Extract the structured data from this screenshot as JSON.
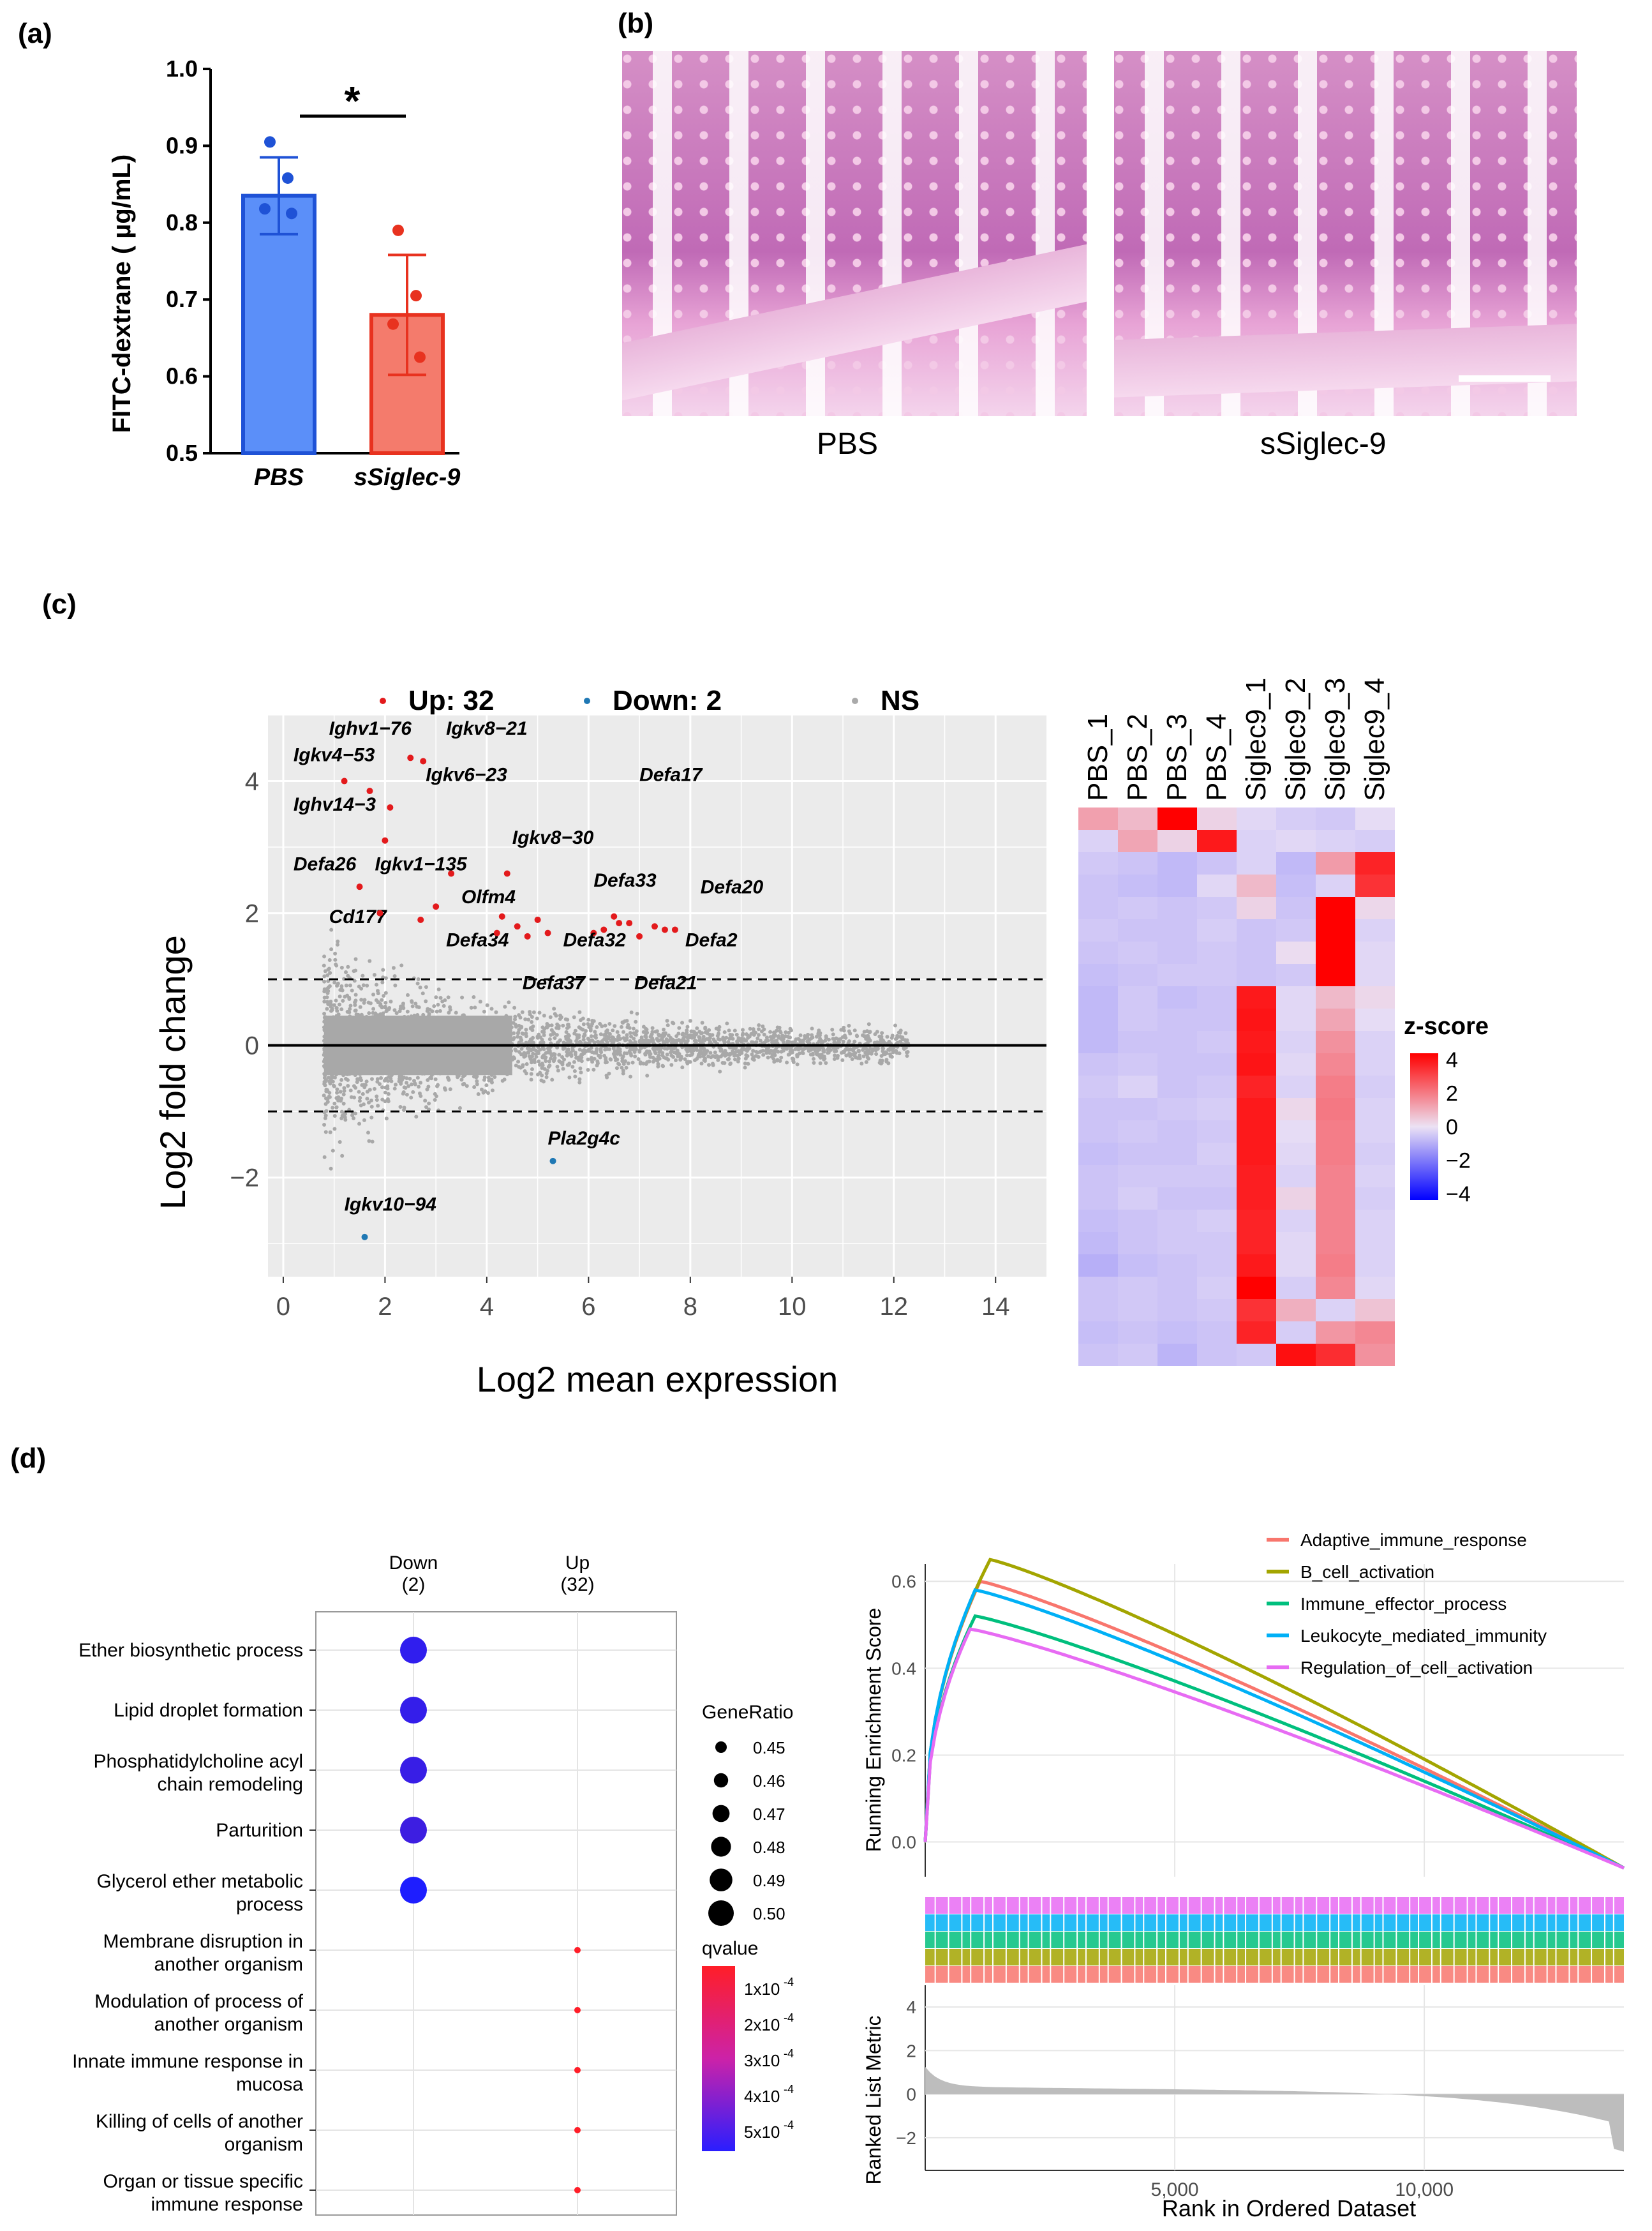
{
  "panel_labels": {
    "a": "(a)",
    "b": "(b)",
    "c": "(c)",
    "d": "(d)"
  },
  "panel_a": {
    "ylabel": "FITC-dextrane ( µg/mL)",
    "significance": "*",
    "yticks": [
      "0.5",
      "0.6",
      "0.7",
      "0.8",
      "0.9",
      "1.0"
    ],
    "chart_data": {
      "type": "bar",
      "categories": [
        "PBS",
        "sSiglec-9"
      ],
      "values": [
        0.835,
        0.68
      ],
      "errors": [
        0.05,
        0.078
      ],
      "points": [
        [
          0.905,
          0.858,
          0.818,
          0.812
        ],
        [
          0.79,
          0.705,
          0.668,
          0.625
        ]
      ],
      "ylim": [
        0.5,
        1.0
      ],
      "colors": [
        "#5b8ff9",
        "#f47b6c"
      ],
      "edge_colors": [
        "#1f52d6",
        "#e8321f"
      ]
    }
  },
  "panel_b": {
    "left_label": "PBS",
    "right_label": "sSiglec-9"
  },
  "panel_c": {
    "legend": [
      {
        "label": "Up: 32",
        "color": "#e31a1c"
      },
      {
        "label": "Down: 2",
        "color": "#1f78b4"
      },
      {
        "label": "NS",
        "color": "#aaaaaa"
      }
    ],
    "ma_plot": {
      "type": "scatter",
      "xlabel": "Log2 mean expression",
      "ylabel": "Log2 fold change",
      "xticks": [
        "0",
        "2",
        "4",
        "6",
        "8",
        "10",
        "12",
        "14"
      ],
      "yticks": [
        "−2",
        "0",
        "2",
        "4"
      ],
      "xlim": [
        -0.3,
        15
      ],
      "ylim": [
        -3.5,
        5
      ],
      "thresholds": [
        -1,
        1
      ],
      "labeled_genes": [
        {
          "name": "Ighv1−76",
          "x": 2.5,
          "y": 4.35,
          "tx": 0.9,
          "ty": 4.7
        },
        {
          "name": "Igkv8−21",
          "x": 2.75,
          "y": 4.3,
          "tx": 3.2,
          "ty": 4.7
        },
        {
          "name": "Igkv4−53",
          "x": 1.2,
          "y": 4.0,
          "tx": 0.2,
          "ty": 4.3
        },
        {
          "name": "Igkv6−23",
          "x": 1.7,
          "y": 3.85,
          "tx": 2.8,
          "ty": 4.0
        },
        {
          "name": "Ighv14−3",
          "x": 2.1,
          "y": 3.6,
          "tx": 0.2,
          "ty": 3.55
        },
        {
          "name": "Igkv8−30",
          "x": 4.4,
          "y": 2.6,
          "tx": 4.5,
          "ty": 3.05
        },
        {
          "name": "Defa26",
          "x": 1.5,
          "y": 2.4,
          "tx": 0.2,
          "ty": 2.65
        },
        {
          "name": "Igkv1−135",
          "x": 3.3,
          "y": 2.6,
          "tx": 1.8,
          "ty": 2.65
        },
        {
          "name": "Olfm4",
          "x": 4.3,
          "y": 1.95,
          "tx": 3.5,
          "ty": 2.15
        },
        {
          "name": "Cd177",
          "x": 2.7,
          "y": 1.9,
          "tx": 0.9,
          "ty": 1.85
        },
        {
          "name": "Defa17",
          "x": 6.5,
          "y": 1.95,
          "tx": 7.0,
          "ty": 4.0
        },
        {
          "name": "Defa33",
          "x": 6.6,
          "y": 1.85,
          "tx": 6.1,
          "ty": 2.4
        },
        {
          "name": "Defa20",
          "x": 7.3,
          "y": 1.8,
          "tx": 8.2,
          "ty": 2.3
        },
        {
          "name": "Defa34",
          "x": 4.8,
          "y": 1.65,
          "tx": 3.2,
          "ty": 1.5
        },
        {
          "name": "Defa32",
          "x": 6.1,
          "y": 1.7,
          "tx": 5.5,
          "ty": 1.5
        },
        {
          "name": "Defa2",
          "x": 7.5,
          "y": 1.75,
          "tx": 7.9,
          "ty": 1.5
        },
        {
          "name": "Defa37",
          "x": 5.2,
          "y": 1.7,
          "tx": 4.7,
          "ty": 0.85
        },
        {
          "name": "Defa21",
          "x": 7.0,
          "y": 1.65,
          "tx": 6.9,
          "ty": 0.85
        },
        {
          "name": "Pla2g4c",
          "x": 5.3,
          "y": -1.75,
          "tx": 5.2,
          "ty": -1.5
        },
        {
          "name": "Igkv10−94",
          "x": 1.6,
          "y": -2.9,
          "tx": 1.2,
          "ty": -2.5
        }
      ]
    },
    "heatmap": {
      "type": "heatmap",
      "columns": [
        "PBS_1",
        "PBS_2",
        "PBS_3",
        "PBS_4",
        "Siglec9_1",
        "Siglec9_2",
        "Siglec9_3",
        "Siglec9_4"
      ],
      "legend_title": "z-score",
      "legend_ticks": [
        "4",
        "2",
        "0",
        "−2",
        "−4"
      ],
      "values": [
        [
          1.3,
          0.8,
          4.5,
          0.3,
          -0.2,
          -0.4,
          -0.5,
          -0.1
        ],
        [
          -0.3,
          1.2,
          0.3,
          4.0,
          -0.3,
          -0.2,
          -0.3,
          -0.4
        ],
        [
          -0.5,
          -0.6,
          -0.8,
          -0.6,
          -0.3,
          -0.8,
          1.4,
          3.8
        ],
        [
          -0.6,
          -0.7,
          -0.8,
          -0.2,
          0.8,
          -0.7,
          -0.3,
          3.5
        ],
        [
          -0.6,
          -0.5,
          -0.6,
          -0.5,
          0.3,
          -0.6,
          4.6,
          0.2
        ],
        [
          -0.5,
          -0.6,
          -0.6,
          -0.4,
          -0.6,
          -0.5,
          4.5,
          -0.3
        ],
        [
          -0.6,
          -0.5,
          -0.6,
          -0.5,
          -0.6,
          0.1,
          4.5,
          -0.2
        ],
        [
          -0.7,
          -0.6,
          -0.5,
          -0.5,
          -0.6,
          -0.5,
          4.6,
          -0.2
        ],
        [
          -0.8,
          -0.5,
          -0.7,
          -0.6,
          4.0,
          -0.2,
          0.8,
          0.2
        ],
        [
          -0.8,
          -0.5,
          -0.6,
          -0.6,
          4.1,
          -0.2,
          1.2,
          -0.1
        ],
        [
          -0.8,
          -0.6,
          -0.6,
          -0.5,
          4.0,
          -0.3,
          1.6,
          -0.3
        ],
        [
          -0.6,
          -0.5,
          -0.6,
          -0.6,
          4.1,
          -0.2,
          1.8,
          -0.3
        ],
        [
          -0.5,
          -0.3,
          -0.6,
          -0.5,
          3.8,
          -0.3,
          2.0,
          -0.4
        ],
        [
          -0.6,
          -0.6,
          -0.5,
          -0.4,
          4.0,
          0.2,
          2.1,
          -0.3
        ],
        [
          -0.6,
          -0.5,
          -0.6,
          -0.5,
          4.0,
          -0.1,
          2.0,
          -0.3
        ],
        [
          -0.7,
          -0.6,
          -0.6,
          -0.4,
          4.0,
          -0.2,
          2.0,
          -0.4
        ],
        [
          -0.6,
          -0.5,
          -0.5,
          -0.5,
          3.9,
          -0.3,
          1.9,
          -0.3
        ],
        [
          -0.6,
          -0.4,
          -0.6,
          -0.6,
          3.9,
          0.3,
          1.9,
          -0.4
        ],
        [
          -0.7,
          -0.6,
          -0.5,
          -0.4,
          3.8,
          -0.3,
          1.9,
          -0.3
        ],
        [
          -0.8,
          -0.6,
          -0.5,
          -0.5,
          3.8,
          -0.2,
          1.9,
          -0.3
        ],
        [
          -1.0,
          -0.7,
          -0.6,
          -0.5,
          4.0,
          -0.2,
          2.0,
          -0.3
        ],
        [
          -0.6,
          -0.5,
          -0.6,
          -0.4,
          4.5,
          -0.4,
          1.8,
          -0.2
        ],
        [
          -0.6,
          -0.5,
          -0.6,
          -0.5,
          3.5,
          1.0,
          -0.3,
          0.6
        ],
        [
          -0.7,
          -0.6,
          -0.7,
          -0.6,
          3.8,
          -0.4,
          1.5,
          1.8
        ],
        [
          -0.6,
          -0.5,
          -0.9,
          -0.6,
          -0.5,
          4.2,
          3.6,
          1.6
        ]
      ]
    }
  },
  "panel_d": {
    "dotplot": {
      "type": "scatter",
      "columns": [
        {
          "name": "Down",
          "count": "(2)"
        },
        {
          "name": "Up",
          "count": "(32)"
        }
      ],
      "terms": [
        {
          "line1": "Ether biosynthetic process",
          "line2": "",
          "group": "Down",
          "gene_ratio": 0.5,
          "qvalue": 0.00048
        },
        {
          "line1": "Lipid droplet formation",
          "line2": "",
          "group": "Down",
          "gene_ratio": 0.5,
          "qvalue": 0.00047
        },
        {
          "line1": "Phosphatidylcholine acyl",
          "line2": "chain remodeling",
          "group": "Down",
          "gene_ratio": 0.5,
          "qvalue": 0.00046
        },
        {
          "line1": "Parturition",
          "line2": "",
          "group": "Down",
          "gene_ratio": 0.5,
          "qvalue": 0.00045
        },
        {
          "line1": "Glycerol ether metabolic",
          "line2": "process",
          "group": "Down",
          "gene_ratio": 0.5,
          "qvalue": 0.00052
        },
        {
          "line1": "Membrane disruption in",
          "line2": "another organism",
          "group": "Up",
          "gene_ratio": 0.03,
          "qvalue": 1e-05
        },
        {
          "line1": "Modulation of process of",
          "line2": "another organism",
          "group": "Up",
          "gene_ratio": 0.03,
          "qvalue": 1e-05
        },
        {
          "line1": "Innate immune response in",
          "line2": "mucosa",
          "group": "Up",
          "gene_ratio": 0.03,
          "qvalue": 1e-05
        },
        {
          "line1": "Killing of cells of another",
          "line2": "organism",
          "group": "Up",
          "gene_ratio": 0.03,
          "qvalue": 1e-05
        },
        {
          "line1": "Organ or tissue specific",
          "line2": "immune response",
          "group": "Up",
          "gene_ratio": 0.03,
          "qvalue": 1e-05
        }
      ],
      "size_legend_title": "GeneRatio",
      "size_legend": [
        "0.45",
        "0.46",
        "0.47",
        "0.48",
        "0.49",
        "0.50"
      ],
      "color_legend_title": "qvalue",
      "color_legend": [
        "1x10",
        "2x10",
        "3x10",
        "4x10",
        "5x10"
      ],
      "color_legend_exp": "-4"
    },
    "gsea": {
      "type": "line",
      "ylabel_top": "Running Enrichment Score",
      "ylabel_bottom": "Ranked List Metric",
      "xlabel": "Rank in Ordered Dataset",
      "xticks": [
        "5,000",
        "10,000"
      ],
      "xtick_values": [
        5000,
        10000
      ],
      "xlim": [
        0,
        14000
      ],
      "yticks_top": [
        "0.0",
        "0.2",
        "0.4",
        "0.6"
      ],
      "yticks_bottom": [
        "−2",
        "0",
        "2",
        "4"
      ],
      "series": [
        {
          "name": "Adaptive_immune_response",
          "color": "#f8766d",
          "peak": 0.6,
          "peak_rank": 1100
        },
        {
          "name": "B_cell_activation",
          "color": "#a3a500",
          "peak": 0.65,
          "peak_rank": 1300
        },
        {
          "name": "Immune_effector_process",
          "color": "#00bf7d",
          "peak": 0.52,
          "peak_rank": 1000
        },
        {
          "name": "Leukocyte_mediated_immunity",
          "color": "#00b0f6",
          "peak": 0.58,
          "peak_rank": 1000
        },
        {
          "name": "Regulation_of_cell_activation",
          "color": "#e76bf3",
          "peak": 0.49,
          "peak_rank": 900
        }
      ]
    }
  }
}
